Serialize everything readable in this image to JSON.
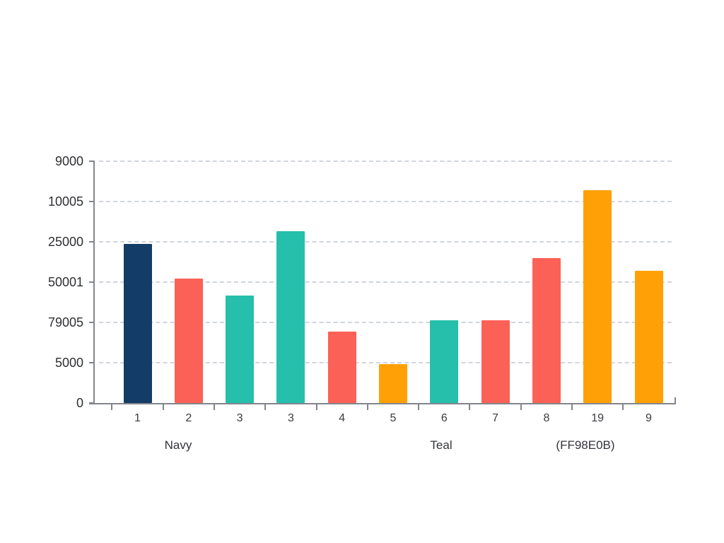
{
  "chart_data": {
    "type": "bar",
    "title": "",
    "xlabel": "",
    "ylabel": "",
    "x_tick_labels": [
      "1",
      "2",
      "3",
      "3",
      "4",
      "5",
      "6",
      "7",
      "8",
      "19",
      "9"
    ],
    "y_tick_labels_top_to_bottom": [
      "9000",
      "10005",
      "25000",
      "50001",
      "79005",
      "5000",
      "0"
    ],
    "group_labels": [
      "Navy",
      "Teal",
      "(FF98E0B)"
    ],
    "series": [
      {
        "name": "values",
        "values": [
          3.95,
          3.09,
          2.67,
          4.26,
          1.77,
          0.96,
          2.05,
          2.05,
          3.6,
          5.28,
          3.28
        ]
      }
    ],
    "bar_color_names": [
      "navy",
      "coral",
      "teal",
      "teal",
      "coral",
      "orange",
      "teal",
      "coral",
      "coral",
      "orange",
      "orange"
    ],
    "colors": {
      "navy": "#133c66",
      "coral": "#fb6156",
      "teal": "#26bfab",
      "orange": "#ffa106"
    },
    "axis_color": "#82868c",
    "gridline_color": "#ccd1db",
    "ylim": [
      0,
      6.1
    ],
    "grid": "horizontal-dashed",
    "legend": "none"
  }
}
